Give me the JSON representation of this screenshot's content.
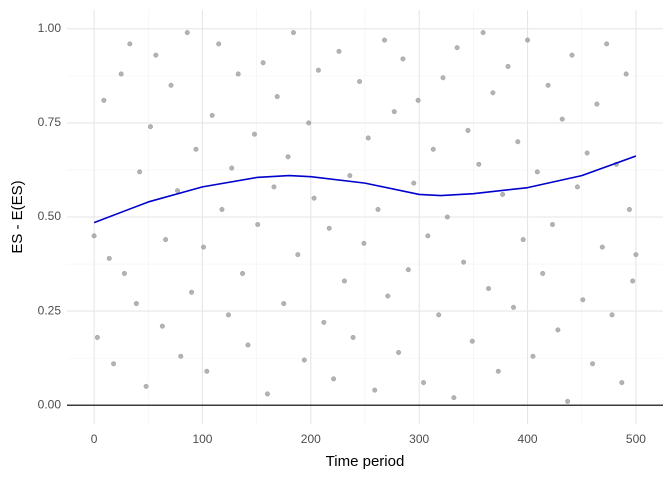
{
  "chart_data": {
    "type": "scatter",
    "xlabel": "Time period",
    "ylabel": "ES - E(ES)",
    "xlim": [
      -25,
      525
    ],
    "ylim": [
      -0.05,
      1.05
    ],
    "xticks": [
      0,
      100,
      200,
      300,
      400,
      500
    ],
    "yticks": [
      {
        "value": 0,
        "label": "0.00"
      },
      {
        "value": 0.25,
        "label": "0.25"
      },
      {
        "value": 0.5,
        "label": "0.50"
      },
      {
        "value": 0.75,
        "label": "0.75"
      },
      {
        "value": 1,
        "label": "1.00"
      }
    ],
    "xminor": [
      50,
      150,
      250,
      350,
      450
    ],
    "yminor": [
      0.125,
      0.375,
      0.625,
      0.875
    ],
    "grid": true,
    "hline": 0,
    "series": [
      {
        "type": "scatter",
        "color": "#999999",
        "x": [
          0,
          3,
          9,
          14,
          18,
          25,
          28,
          33,
          39,
          42,
          48,
          52,
          57,
          63,
          66,
          71,
          77,
          80,
          86,
          90,
          94,
          101,
          104,
          109,
          115,
          118,
          124,
          127,
          133,
          137,
          142,
          148,
          151,
          156,
          160,
          166,
          169,
          175,
          179,
          184,
          188,
          194,
          198,
          203,
          207,
          212,
          217,
          221,
          226,
          231,
          236,
          239,
          245,
          249,
          253,
          259,
          262,
          268,
          271,
          277,
          281,
          285,
          290,
          295,
          299,
          304,
          308,
          313,
          318,
          322,
          326,
          332,
          335,
          341,
          345,
          349,
          355,
          359,
          364,
          368,
          373,
          377,
          382,
          387,
          391,
          396,
          400,
          405,
          409,
          414,
          419,
          423,
          428,
          432,
          437,
          441,
          446,
          451,
          455,
          460,
          464,
          469,
          473,
          478,
          482,
          487,
          491,
          494,
          497,
          500
        ],
        "values": [
          0.45,
          0.18,
          0.81,
          0.39,
          0.11,
          0.88,
          0.35,
          0.96,
          0.27,
          0.62,
          0.05,
          0.74,
          0.93,
          0.21,
          0.44,
          0.85,
          0.57,
          0.13,
          0.99,
          0.3,
          0.68,
          0.42,
          0.09,
          0.77,
          0.96,
          0.52,
          0.24,
          0.63,
          0.88,
          0.35,
          0.16,
          0.72,
          0.48,
          0.91,
          0.03,
          0.58,
          0.82,
          0.27,
          0.66,
          0.99,
          0.4,
          0.12,
          0.75,
          0.55,
          0.89,
          0.22,
          0.47,
          0.07,
          0.94,
          0.33,
          0.61,
          0.18,
          0.86,
          0.43,
          0.71,
          0.04,
          0.52,
          0.97,
          0.29,
          0.78,
          0.14,
          0.92,
          0.36,
          0.59,
          0.81,
          0.06,
          0.45,
          0.68,
          0.24,
          0.87,
          0.5,
          0.02,
          0.95,
          0.38,
          0.73,
          0.17,
          0.64,
          0.99,
          0.31,
          0.83,
          0.09,
          0.56,
          0.9,
          0.26,
          0.7,
          0.44,
          0.97,
          0.13,
          0.62,
          0.35,
          0.85,
          0.48,
          0.2,
          0.76,
          0.01,
          0.93,
          0.58,
          0.28,
          0.67,
          0.11,
          0.8,
          0.42,
          0.96,
          0.24,
          0.64,
          0.06,
          0.88,
          0.52,
          0.33,
          0.4
        ]
      },
      {
        "type": "line",
        "color": "#0000cc",
        "x": [
          0,
          50,
          100,
          150,
          180,
          200,
          250,
          300,
          320,
          350,
          400,
          450,
          500
        ],
        "values": [
          0.485,
          0.54,
          0.58,
          0.605,
          0.61,
          0.607,
          0.59,
          0.56,
          0.557,
          0.562,
          0.578,
          0.61,
          0.662
        ]
      }
    ]
  }
}
